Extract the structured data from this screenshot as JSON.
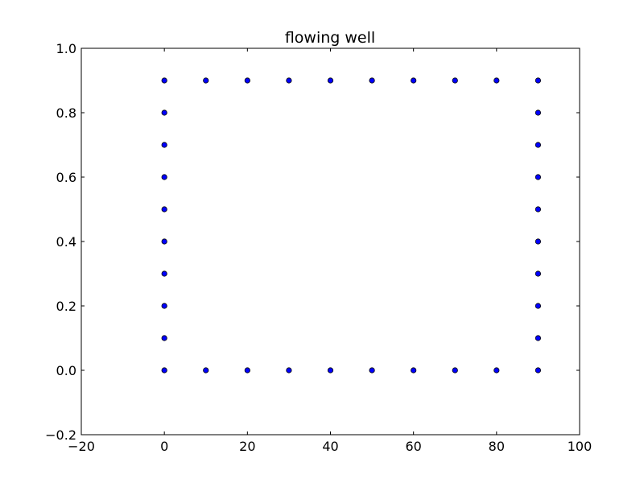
{
  "chart_data": {
    "type": "scatter",
    "title": "flowing well",
    "xlabel": "",
    "ylabel": "",
    "xlim": [
      -20,
      100
    ],
    "ylim": [
      -0.2,
      1.0
    ],
    "xticks": [
      -20,
      0,
      20,
      40,
      60,
      80,
      100
    ],
    "yticks": [
      -0.2,
      0.0,
      0.2,
      0.4,
      0.6,
      0.8,
      1.0
    ],
    "xtick_labels": [
      "−20",
      "0",
      "20",
      "40",
      "60",
      "80",
      "100"
    ],
    "ytick_labels": [
      "−0.2",
      "0.0",
      "0.2",
      "0.4",
      "0.6",
      "0.8",
      "1.0"
    ],
    "grid": false,
    "marker_color": "#0000ff",
    "marker_edge_color": "#000000",
    "points": [
      {
        "x": 0,
        "y": 0.0
      },
      {
        "x": 10,
        "y": 0.0
      },
      {
        "x": 20,
        "y": 0.0
      },
      {
        "x": 30,
        "y": 0.0
      },
      {
        "x": 40,
        "y": 0.0
      },
      {
        "x": 50,
        "y": 0.0
      },
      {
        "x": 60,
        "y": 0.0
      },
      {
        "x": 70,
        "y": 0.0
      },
      {
        "x": 80,
        "y": 0.0
      },
      {
        "x": 90,
        "y": 0.0
      },
      {
        "x": 0,
        "y": 0.9
      },
      {
        "x": 10,
        "y": 0.9
      },
      {
        "x": 20,
        "y": 0.9
      },
      {
        "x": 30,
        "y": 0.9
      },
      {
        "x": 40,
        "y": 0.9
      },
      {
        "x": 50,
        "y": 0.9
      },
      {
        "x": 60,
        "y": 0.9
      },
      {
        "x": 70,
        "y": 0.9
      },
      {
        "x": 80,
        "y": 0.9
      },
      {
        "x": 90,
        "y": 0.9
      },
      {
        "x": 0,
        "y": 0.1
      },
      {
        "x": 0,
        "y": 0.2
      },
      {
        "x": 0,
        "y": 0.3
      },
      {
        "x": 0,
        "y": 0.4
      },
      {
        "x": 0,
        "y": 0.5
      },
      {
        "x": 0,
        "y": 0.6
      },
      {
        "x": 0,
        "y": 0.7
      },
      {
        "x": 0,
        "y": 0.8
      },
      {
        "x": 90,
        "y": 0.1
      },
      {
        "x": 90,
        "y": 0.2
      },
      {
        "x": 90,
        "y": 0.3
      },
      {
        "x": 90,
        "y": 0.4
      },
      {
        "x": 90,
        "y": 0.5
      },
      {
        "x": 90,
        "y": 0.6
      },
      {
        "x": 90,
        "y": 0.7
      },
      {
        "x": 90,
        "y": 0.8
      }
    ]
  }
}
